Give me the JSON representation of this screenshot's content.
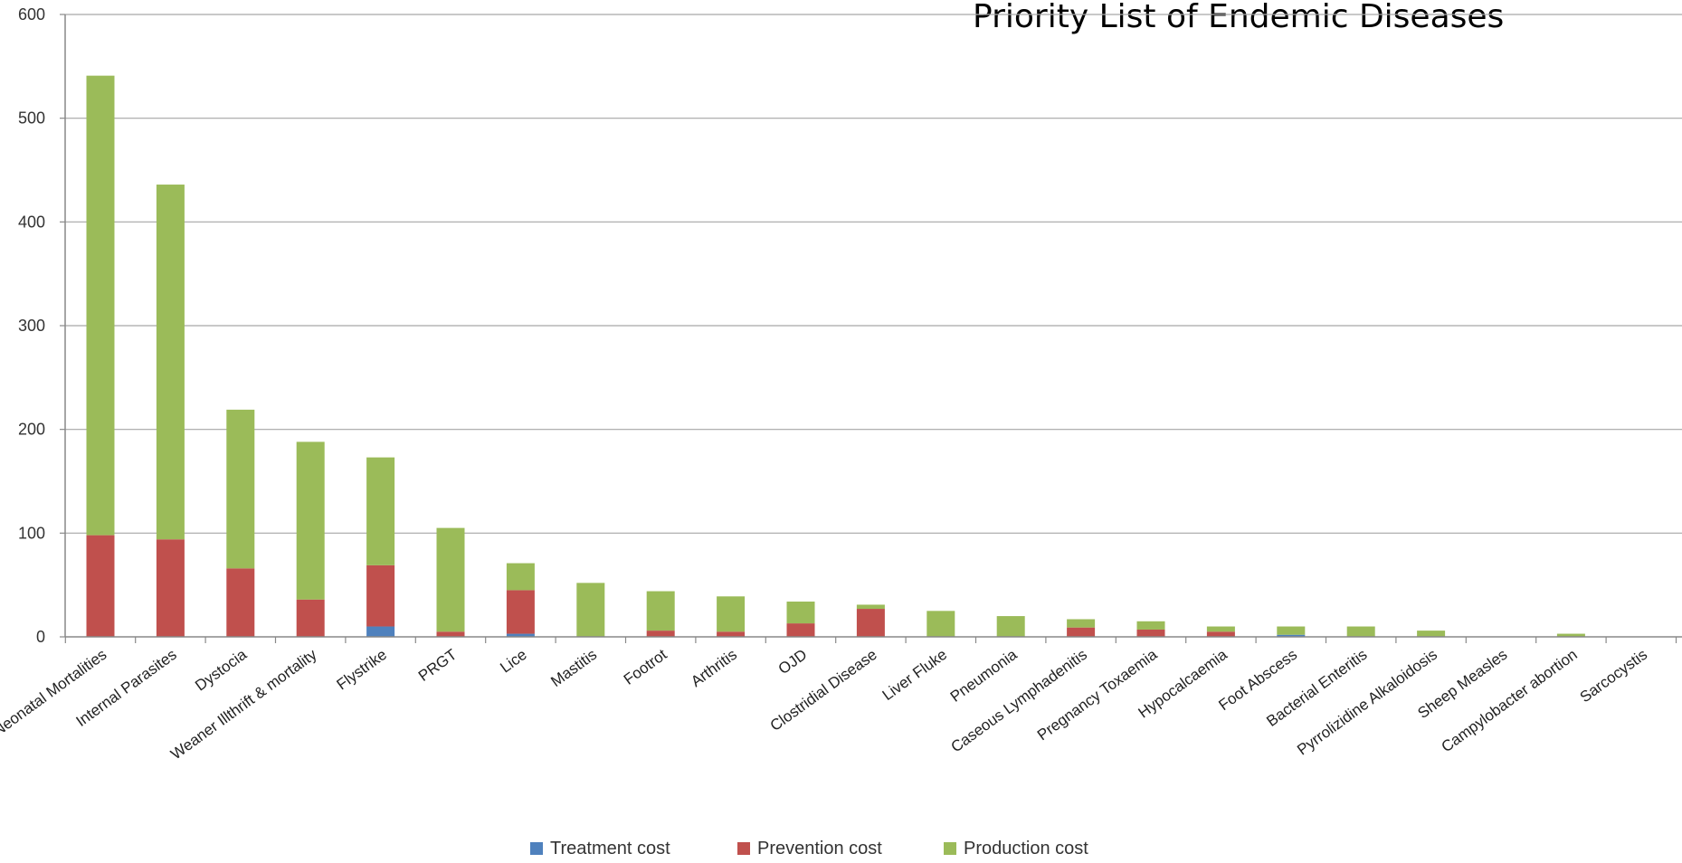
{
  "chart_data": {
    "type": "bar",
    "stacked": true,
    "title": "Priority List of Endemic Diseases",
    "xlabel": "",
    "ylabel": "",
    "ylim": [
      0,
      600
    ],
    "yticks": [
      0,
      100,
      200,
      300,
      400,
      500,
      600
    ],
    "grid": true,
    "legend_position": "bottom",
    "categories": [
      "Neonatal Mortalities",
      "Internal Parasites",
      "Dystocia",
      "Weaner Illthrift & mortality",
      "Flystrike",
      "PRGT",
      "Lice",
      "Mastitis",
      "Footrot",
      "Arthritis",
      "OJD",
      "Clostridial Disease",
      "Liver Fluke",
      "Pneumonia",
      "Caseous Lymphadenitis",
      "Pregnancy Toxaemia",
      "Hypocalcaemia",
      "Foot Abscess",
      "Bacterial Enteritis",
      "Pyrrolizidine Alkaloidosis",
      "Sheep Measles",
      "Campylobacter abortion",
      "Sarcocystis"
    ],
    "series": [
      {
        "name": "Treatment cost",
        "color": "#4f81bd",
        "values": [
          0,
          0,
          0,
          0,
          10,
          0,
          3,
          0,
          0,
          0,
          0,
          0,
          0,
          0,
          0,
          0,
          0,
          2,
          0,
          0,
          0,
          0,
          0
        ]
      },
      {
        "name": "Prevention cost",
        "color": "#c0504d",
        "values": [
          98,
          94,
          66,
          36,
          59,
          5,
          42,
          0,
          6,
          5,
          13,
          27,
          0,
          0,
          9,
          7,
          5,
          0,
          0,
          0,
          0,
          0,
          0
        ]
      },
      {
        "name": "Production cost",
        "color": "#9bbb59",
        "values": [
          443,
          342,
          153,
          152,
          104,
          100,
          26,
          52,
          38,
          34,
          21,
          4,
          25,
          20,
          8,
          8,
          5,
          8,
          10,
          6,
          0,
          3,
          0
        ]
      }
    ]
  }
}
